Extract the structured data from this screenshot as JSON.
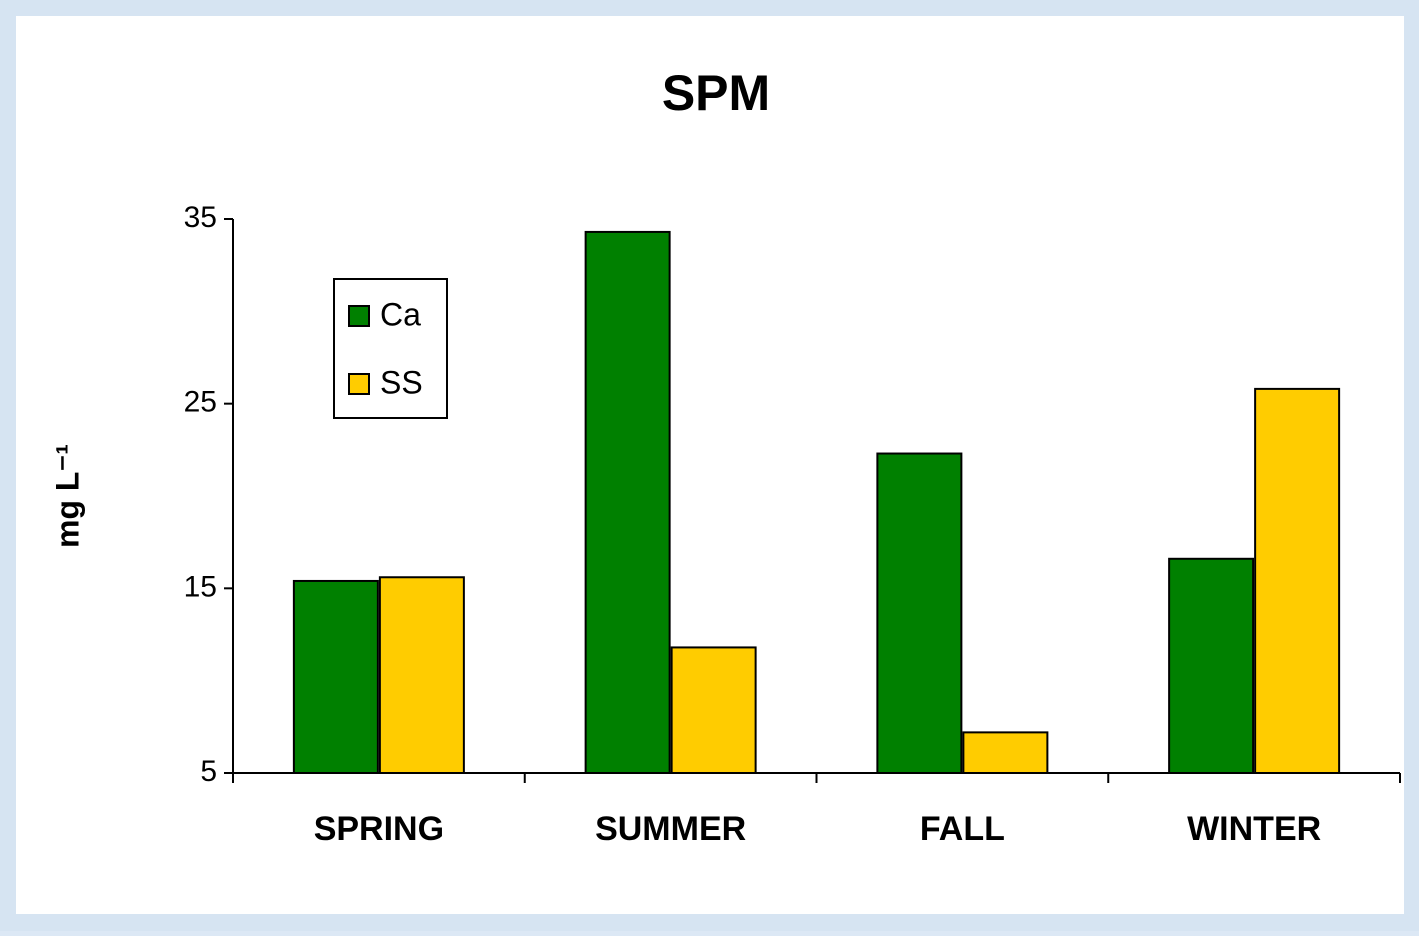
{
  "chart_data": {
    "type": "bar",
    "title": "SPM",
    "y_label": "mg L⁻¹",
    "categories": [
      "SPRING",
      "SUMMER",
      "FALL",
      "WINTER"
    ],
    "series": [
      {
        "name": "Ca",
        "color": "#008000",
        "values": [
          15.4,
          34.3,
          22.3,
          16.6
        ]
      },
      {
        "name": "SS",
        "color": "#ffcc00",
        "values": [
          15.6,
          11.8,
          7.2,
          25.8
        ]
      }
    ],
    "ylim": [
      5,
      35
    ],
    "yticks": [
      5,
      15,
      25,
      35
    ],
    "grid": false,
    "legend": "upper left"
  }
}
